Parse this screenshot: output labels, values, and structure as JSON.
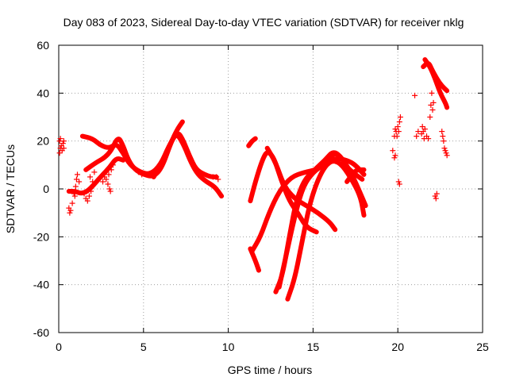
{
  "chart_data": {
    "type": "scatter",
    "title": "Day 083 of 2023, Sidereal Day-to-day VTEC variation (SDTVAR) for receiver nklg",
    "xlabel": "GPS time / hours",
    "ylabel": "SDTVAR / TECUs",
    "xlim": [
      0,
      25
    ],
    "ylim": [
      -60,
      60
    ],
    "xticks": [
      0,
      5,
      10,
      15,
      20,
      25
    ],
    "yticks": [
      -60,
      -40,
      -20,
      0,
      20,
      40,
      60
    ],
    "xtick_labels": [
      "0",
      "5",
      "10",
      "15",
      "20",
      "25"
    ],
    "ytick_labels": [
      "-60",
      "-40",
      "-20",
      "0",
      "20",
      "40",
      "60"
    ],
    "grid": true,
    "marker": "+",
    "color": "#ff0000",
    "dense_tracks": [
      {
        "name": "track-a1",
        "points": [
          [
            1.4,
            22
          ],
          [
            2.0,
            21
          ],
          [
            2.5,
            18
          ],
          [
            3.0,
            17
          ],
          [
            3.4,
            19
          ],
          [
            3.8,
            15
          ],
          [
            4.2,
            10
          ],
          [
            4.8,
            7
          ],
          [
            5.4,
            6
          ],
          [
            6.0,
            10
          ],
          [
            6.5,
            18
          ],
          [
            7.0,
            24
          ],
          [
            7.3,
            21
          ],
          [
            7.7,
            14
          ],
          [
            8.1,
            8
          ],
          [
            8.6,
            6
          ],
          [
            9.0,
            5
          ],
          [
            9.3,
            5
          ]
        ]
      },
      {
        "name": "track-a2",
        "points": [
          [
            1.6,
            8
          ],
          [
            2.2,
            11
          ],
          [
            2.7,
            13
          ],
          [
            3.1,
            16
          ],
          [
            3.5,
            22
          ],
          [
            3.8,
            18
          ],
          [
            4.1,
            12
          ],
          [
            4.5,
            8
          ],
          [
            5.0,
            6
          ],
          [
            5.6,
            5
          ],
          [
            6.1,
            9
          ],
          [
            6.6,
            19
          ],
          [
            7.0,
            25
          ],
          [
            7.3,
            28
          ]
        ]
      },
      {
        "name": "track-a3",
        "points": [
          [
            5.6,
            5
          ],
          [
            6.2,
            12
          ],
          [
            6.7,
            21
          ],
          [
            7.0,
            23
          ],
          [
            7.4,
            18
          ],
          [
            7.8,
            11
          ],
          [
            8.2,
            6
          ],
          [
            8.7,
            3
          ],
          [
            9.2,
            1
          ],
          [
            9.6,
            -3
          ]
        ]
      },
      {
        "name": "track-a4",
        "points": [
          [
            0.6,
            -1
          ],
          [
            1.0,
            -1
          ],
          [
            1.3,
            -2
          ],
          [
            1.7,
            -1
          ],
          [
            2.1,
            2
          ],
          [
            2.6,
            6
          ],
          [
            3.0,
            9
          ],
          [
            3.4,
            13
          ],
          [
            3.8,
            12
          ]
        ]
      },
      {
        "name": "track-b1",
        "points": [
          [
            11.3,
            -25
          ],
          [
            11.6,
            -30
          ],
          [
            11.8,
            -34
          ]
        ]
      },
      {
        "name": "track-b2",
        "points": [
          [
            11.3,
            -5
          ],
          [
            11.6,
            3
          ],
          [
            12.0,
            12
          ],
          [
            12.3,
            16
          ],
          [
            12.7,
            13
          ],
          [
            13.1,
            4
          ],
          [
            13.6,
            -5
          ],
          [
            14.1,
            -10
          ],
          [
            14.6,
            -16
          ],
          [
            15.2,
            -18
          ]
        ]
      },
      {
        "name": "track-b3",
        "points": [
          [
            11.4,
            -26
          ],
          [
            11.9,
            -20
          ],
          [
            12.4,
            -10
          ],
          [
            13.0,
            -1
          ],
          [
            13.7,
            5
          ],
          [
            14.5,
            7
          ],
          [
            15.2,
            8
          ],
          [
            15.8,
            11
          ],
          [
            16.2,
            15
          ],
          [
            16.6,
            14
          ],
          [
            17.0,
            9
          ],
          [
            17.5,
            6
          ],
          [
            17.9,
            4
          ]
        ]
      },
      {
        "name": "track-b4",
        "points": [
          [
            12.3,
            17
          ],
          [
            12.8,
            11
          ],
          [
            13.3,
            1
          ],
          [
            13.9,
            -4
          ],
          [
            14.6,
            -7
          ],
          [
            15.3,
            -10
          ],
          [
            16.0,
            -14
          ],
          [
            16.3,
            -17
          ]
        ]
      },
      {
        "name": "track-b5",
        "points": [
          [
            12.8,
            -43
          ],
          [
            13.2,
            -36
          ],
          [
            13.6,
            -20
          ],
          [
            14.0,
            -5
          ],
          [
            14.5,
            4
          ],
          [
            15.1,
            8
          ],
          [
            15.7,
            12
          ],
          [
            16.2,
            16
          ],
          [
            16.7,
            13
          ],
          [
            17.3,
            6
          ],
          [
            17.8,
            -2
          ],
          [
            18.1,
            -7
          ]
        ]
      },
      {
        "name": "track-b6",
        "points": [
          [
            13.5,
            -46
          ],
          [
            13.9,
            -38
          ],
          [
            14.3,
            -24
          ],
          [
            14.8,
            -6
          ],
          [
            15.4,
            6
          ],
          [
            16.0,
            12
          ],
          [
            16.6,
            11
          ],
          [
            17.2,
            5
          ],
          [
            17.8,
            -3
          ],
          [
            18.0,
            -11
          ]
        ]
      },
      {
        "name": "track-b7",
        "points": [
          [
            13.0,
            -41
          ],
          [
            13.4,
            -28
          ],
          [
            13.9,
            -12
          ],
          [
            14.4,
            1
          ],
          [
            15.0,
            7
          ],
          [
            15.6,
            10
          ],
          [
            16.3,
            13
          ],
          [
            17.0,
            12
          ],
          [
            17.5,
            10
          ],
          [
            18.0,
            6
          ]
        ]
      },
      {
        "name": "track-b8",
        "points": [
          [
            11.2,
            18
          ],
          [
            11.4,
            20
          ],
          [
            11.6,
            21
          ]
        ]
      },
      {
        "name": "track-b9",
        "points": [
          [
            17.0,
            3
          ],
          [
            17.5,
            8
          ],
          [
            18.0,
            8
          ]
        ]
      },
      {
        "name": "track-c1",
        "points": [
          [
            21.5,
            51
          ],
          [
            21.8,
            53
          ],
          [
            22.0,
            50
          ],
          [
            22.3,
            46
          ],
          [
            22.6,
            43
          ],
          [
            22.9,
            41
          ]
        ]
      },
      {
        "name": "track-c2",
        "points": [
          [
            21.6,
            54
          ],
          [
            21.9,
            51
          ],
          [
            22.2,
            46
          ],
          [
            22.5,
            40
          ],
          [
            22.8,
            36
          ],
          [
            22.9,
            34
          ]
        ]
      }
    ],
    "scatter_points": [
      [
        0.05,
        15
      ],
      [
        0.05,
        20
      ],
      [
        0.1,
        17
      ],
      [
        0.1,
        21
      ],
      [
        0.15,
        18
      ],
      [
        0.2,
        16
      ],
      [
        0.25,
        19
      ],
      [
        0.3,
        20
      ],
      [
        0.3,
        17
      ],
      [
        0.6,
        -8
      ],
      [
        0.65,
        -10
      ],
      [
        0.7,
        -9
      ],
      [
        0.8,
        -6
      ],
      [
        0.9,
        -2
      ],
      [
        1.0,
        1
      ],
      [
        1.05,
        4
      ],
      [
        1.1,
        6
      ],
      [
        0.95,
        -3
      ],
      [
        1.2,
        3
      ],
      [
        1.5,
        -2
      ],
      [
        1.6,
        -4
      ],
      [
        1.7,
        -5
      ],
      [
        1.8,
        -3
      ],
      [
        1.9,
        -1
      ],
      [
        2.0,
        3
      ],
      [
        2.1,
        7
      ],
      [
        1.85,
        5
      ],
      [
        2.6,
        3
      ],
      [
        2.7,
        5
      ],
      [
        2.8,
        4
      ],
      [
        2.9,
        2
      ],
      [
        3.0,
        0
      ],
      [
        3.05,
        -1
      ],
      [
        3.1,
        8
      ],
      [
        3.2,
        10
      ],
      [
        2.95,
        6
      ],
      [
        4.7,
        7
      ],
      [
        4.9,
        6
      ],
      [
        9.1,
        5
      ],
      [
        9.3,
        5
      ],
      [
        9.4,
        4
      ],
      [
        19.7,
        16
      ],
      [
        19.8,
        13
      ],
      [
        19.85,
        14
      ],
      [
        19.9,
        24
      ],
      [
        19.95,
        22
      ],
      [
        20.0,
        26
      ],
      [
        20.05,
        24
      ],
      [
        20.1,
        28
      ],
      [
        20.15,
        30
      ],
      [
        19.8,
        22
      ],
      [
        19.85,
        25
      ],
      [
        20.05,
        3
      ],
      [
        20.1,
        2
      ],
      [
        21.0,
        39
      ],
      [
        21.1,
        22
      ],
      [
        21.2,
        24
      ],
      [
        21.4,
        23
      ],
      [
        21.45,
        26
      ],
      [
        21.5,
        24
      ],
      [
        21.55,
        21
      ],
      [
        21.6,
        25
      ],
      [
        21.7,
        22
      ],
      [
        21.8,
        21
      ],
      [
        21.9,
        30
      ],
      [
        21.95,
        35
      ],
      [
        22.0,
        40
      ],
      [
        22.05,
        33
      ],
      [
        22.1,
        36
      ],
      [
        22.2,
        -3
      ],
      [
        22.25,
        -4
      ],
      [
        22.3,
        -2
      ],
      [
        22.6,
        24
      ],
      [
        22.7,
        20
      ],
      [
        22.75,
        17
      ],
      [
        22.8,
        16
      ],
      [
        22.85,
        15
      ],
      [
        22.9,
        14
      ],
      [
        22.65,
        22
      ]
    ]
  }
}
